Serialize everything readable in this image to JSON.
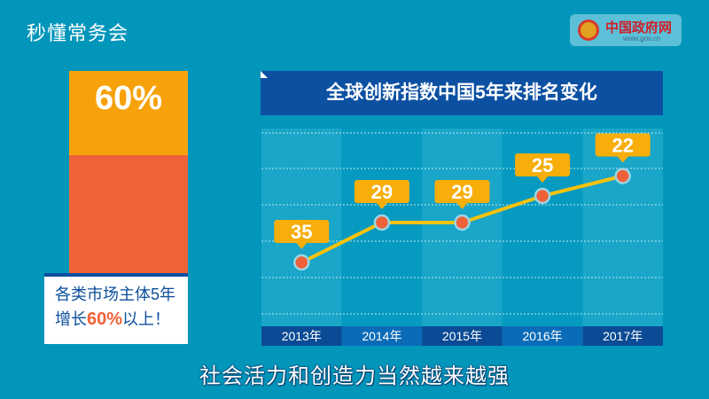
{
  "header": {
    "logo": "秒懂常务会",
    "gov_name": "中国政府网",
    "gov_url": "www.gov.cn"
  },
  "left_panel": {
    "percent": "60%",
    "line1": "各类市场主体5年",
    "line2_prefix": "增长",
    "line2_highlight": "60%",
    "line2_suffix": "以上！",
    "growth_fraction": 0.6
  },
  "subtitle": "社会活力和创造力当然越来越强",
  "colors": {
    "background": "#0396bb",
    "orange": "#f7a20b",
    "red": "#ef6239",
    "navy": "#0c50a2",
    "line": "#f9c20c"
  },
  "chart_data": {
    "type": "line",
    "title": "全球创新指数中国5年来排名变化",
    "categories": [
      "2013年",
      "2014年",
      "2015年",
      "2016年",
      "2017年"
    ],
    "values": [
      35,
      29,
      29,
      25,
      22
    ],
    "grid": true,
    "y_inverted": true
  }
}
